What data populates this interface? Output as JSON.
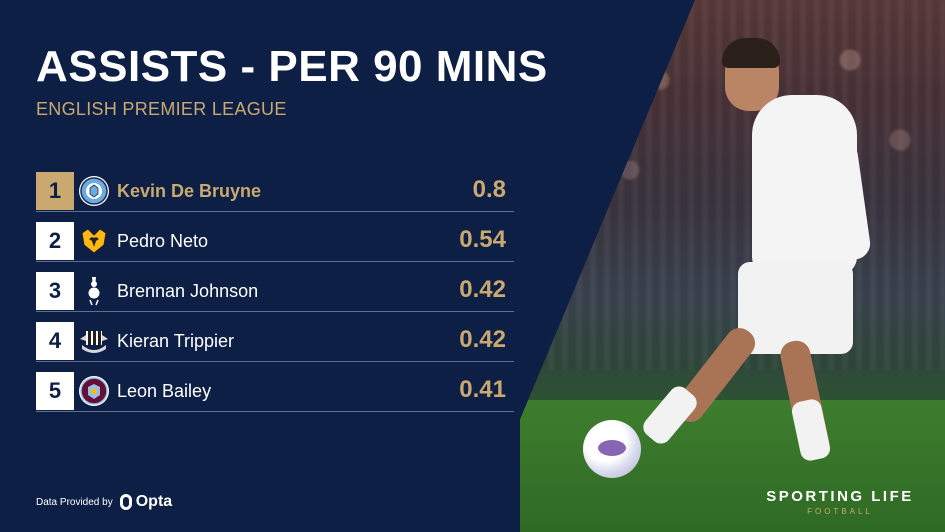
{
  "header": {
    "title": "ASSISTS - PER 90 MINS",
    "subtitle": "ENGLISH PREMIER LEAGUE"
  },
  "leaderboard": [
    {
      "rank": "1",
      "player": "Kevin De Bruyne",
      "value": "0.8",
      "crest_icon": "manchester-city-crest-icon"
    },
    {
      "rank": "2",
      "player": "Pedro Neto",
      "value": "0.54",
      "crest_icon": "wolves-crest-icon"
    },
    {
      "rank": "3",
      "player": "Brennan Johnson",
      "value": "0.42",
      "crest_icon": "tottenham-crest-icon"
    },
    {
      "rank": "4",
      "player": "Kieran Trippier",
      "value": "0.42",
      "crest_icon": "newcastle-crest-icon"
    },
    {
      "rank": "5",
      "player": "Leon Bailey",
      "value": "0.41",
      "crest_icon": "aston-villa-crest-icon"
    }
  ],
  "footer": {
    "data_provided_by": "Data Provided by",
    "provider": "Opta"
  },
  "branding": {
    "main": "SPORTING LIFE",
    "sub": "FOOTBALL"
  },
  "colors": {
    "navy": "#0d1f45",
    "gold": "#c9a970",
    "white": "#ffffff"
  }
}
